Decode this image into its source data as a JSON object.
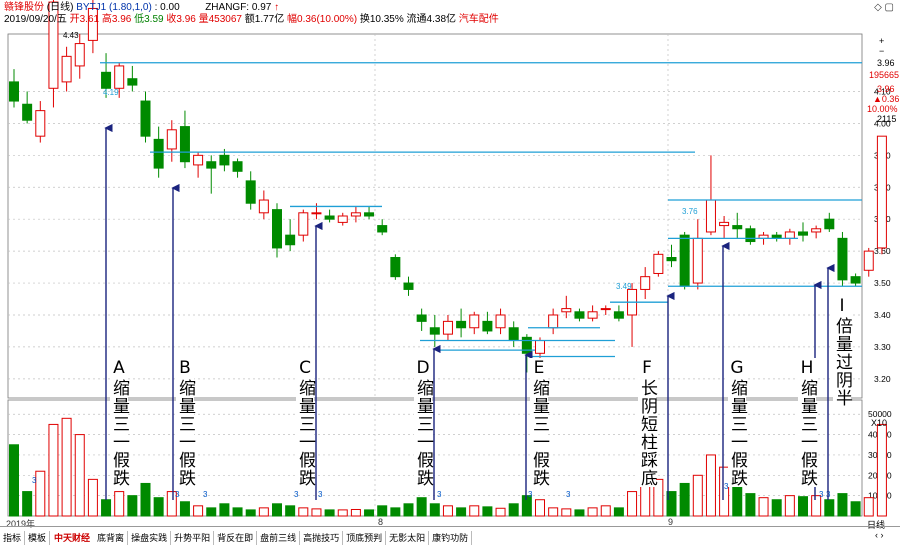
{
  "header": {
    "stock_name": "赣锋股份",
    "period": "(日线)",
    "indicator_label": "BYTJ1 (1.80,1,0)",
    "indicator_value": ": 0.00",
    "zhangf_label": "ZHANGF: 0.97",
    "date": "2019/09/20/五",
    "open_label": "开",
    "open": "3.61",
    "high_label": "高",
    "high": "3.96",
    "low_label": "低",
    "low": "3.59",
    "close_label": "收",
    "close": "3.96",
    "volume_label": "量",
    "volume": "453067",
    "amount_label": "额",
    "amount": "1.77亿",
    "change_label": "幅",
    "change": "0.36(10.00%)",
    "turnover": "换10.35%",
    "float_cap": "流通4.38亿",
    "sector": "汽车配件"
  },
  "window_controls": [
    "◇",
    "▢"
  ],
  "sidebar": {
    "zoom_in": "+",
    "zoom_out": "−",
    "price": "3.96",
    "volume": "195665",
    "price2": "3.96",
    "change": "▲0.36",
    "percent": "10.00%",
    "amount": "2115",
    "period": "日线",
    "nav": "‹ ›",
    "extra": "X10"
  },
  "price_axis": [
    "4.10",
    "4.00",
    "3.90",
    "3.80",
    "3.70",
    "3.60",
    "3.50",
    "3.40",
    "3.30",
    "3.20"
  ],
  "volume_axis": [
    "50000",
    "40000",
    "30000",
    "20000",
    "10000"
  ],
  "footer": {
    "year": "2019年",
    "month_marks": [
      "8",
      "9"
    ]
  },
  "tabs": [
    "指标",
    "模板",
    "底背离",
    "操盘实践",
    "升势平阳",
    "背反在即",
    "盘前三线",
    "高抛技巧",
    "顶底预判",
    "无影太阳",
    "康钓功防"
  ],
  "logo_text": "中天财经",
  "annotations": [
    {
      "letter": "A",
      "text": "缩量三一假跌"
    },
    {
      "letter": "B",
      "text": "缩量三一假跌"
    },
    {
      "letter": "C",
      "text": "缩量三一假跌"
    },
    {
      "letter": "D",
      "text": "缩量三一假跌"
    },
    {
      "letter": "E",
      "text": "缩量三一假跌"
    },
    {
      "letter": "F",
      "text": "长阴短柱踩底"
    },
    {
      "letter": "G",
      "text": "缩量三一假跌"
    },
    {
      "letter": "H",
      "text": "缩量三一假跌"
    },
    {
      "letter": "I",
      "text": "倍量过阴半"
    }
  ],
  "price_labels": [
    "4.43",
    "4.19",
    "3.76",
    "3.49"
  ],
  "volume_markers": [
    "3",
    "3",
    "3",
    "3",
    "3",
    "3",
    "3",
    "3",
    "3",
    "3",
    "3"
  ],
  "colors": {
    "up": "#e00000",
    "down": "#008a00",
    "guide": "#1f9fd6",
    "arrow": "#1a237e",
    "grid": "#c0c0c0"
  },
  "chart_data": {
    "type": "bar",
    "candles_ohlc": [
      [
        4.13,
        4.17,
        4.05,
        4.07
      ],
      [
        4.06,
        4.1,
        4.0,
        4.01
      ],
      [
        3.96,
        4.07,
        3.94,
        4.04
      ],
      [
        4.11,
        4.43,
        4.05,
        4.38
      ],
      [
        4.13,
        4.24,
        4.1,
        4.21
      ],
      [
        4.18,
        4.28,
        4.14,
        4.25
      ],
      [
        4.26,
        4.39,
        4.22,
        4.36
      ],
      [
        4.16,
        4.22,
        4.08,
        4.11
      ],
      [
        4.11,
        4.19,
        4.08,
        4.18
      ],
      [
        4.14,
        4.18,
        4.1,
        4.12
      ],
      [
        4.07,
        4.1,
        3.94,
        3.96
      ],
      [
        3.95,
        3.99,
        3.83,
        3.86
      ],
      [
        3.92,
        4.01,
        3.88,
        3.98
      ],
      [
        3.99,
        4.04,
        3.86,
        3.88
      ],
      [
        3.87,
        3.91,
        3.83,
        3.9
      ],
      [
        3.88,
        3.9,
        3.78,
        3.86
      ],
      [
        3.9,
        3.92,
        3.85,
        3.87
      ],
      [
        3.88,
        3.89,
        3.83,
        3.85
      ],
      [
        3.82,
        3.85,
        3.73,
        3.75
      ],
      [
        3.72,
        3.79,
        3.7,
        3.76
      ],
      [
        3.73,
        3.75,
        3.58,
        3.61
      ],
      [
        3.65,
        3.7,
        3.6,
        3.62
      ],
      [
        3.65,
        3.73,
        3.63,
        3.72
      ],
      [
        3.72,
        3.75,
        3.7,
        3.72
      ],
      [
        3.71,
        3.73,
        3.69,
        3.7
      ],
      [
        3.69,
        3.72,
        3.68,
        3.71
      ],
      [
        3.71,
        3.74,
        3.69,
        3.72
      ],
      [
        3.72,
        3.74,
        3.7,
        3.71
      ],
      [
        3.68,
        3.7,
        3.65,
        3.66
      ],
      [
        3.58,
        3.59,
        3.51,
        3.52
      ],
      [
        3.5,
        3.52,
        3.46,
        3.48
      ],
      [
        3.4,
        3.42,
        3.35,
        3.38
      ],
      [
        3.36,
        3.4,
        3.3,
        3.34
      ],
      [
        3.34,
        3.4,
        3.32,
        3.38
      ],
      [
        3.38,
        3.42,
        3.33,
        3.36
      ],
      [
        3.36,
        3.41,
        3.34,
        3.4
      ],
      [
        3.38,
        3.41,
        3.34,
        3.35
      ],
      [
        3.36,
        3.42,
        3.34,
        3.4
      ],
      [
        3.36,
        3.38,
        3.3,
        3.32
      ],
      [
        3.33,
        3.34,
        3.22,
        3.28
      ],
      [
        3.28,
        3.33,
        3.26,
        3.32
      ],
      [
        3.36,
        3.42,
        3.34,
        3.4
      ],
      [
        3.41,
        3.46,
        3.39,
        3.42
      ],
      [
        3.41,
        3.42,
        3.38,
        3.39
      ],
      [
        3.39,
        3.43,
        3.38,
        3.41
      ],
      [
        3.42,
        3.43,
        3.4,
        3.42
      ],
      [
        3.41,
        3.43,
        3.38,
        3.39
      ],
      [
        3.4,
        3.5,
        3.3,
        3.48
      ],
      [
        3.48,
        3.55,
        3.45,
        3.52
      ],
      [
        3.53,
        3.6,
        3.52,
        3.59
      ],
      [
        3.58,
        3.62,
        3.55,
        3.57
      ],
      [
        3.65,
        3.66,
        3.48,
        3.49
      ],
      [
        3.5,
        3.7,
        3.48,
        3.64
      ],
      [
        3.66,
        3.9,
        3.65,
        3.76
      ],
      [
        3.68,
        3.71,
        3.64,
        3.69
      ],
      [
        3.68,
        3.72,
        3.64,
        3.67
      ],
      [
        3.67,
        3.68,
        3.62,
        3.63
      ],
      [
        3.64,
        3.66,
        3.62,
        3.65
      ],
      [
        3.65,
        3.66,
        3.63,
        3.64
      ],
      [
        3.64,
        3.67,
        3.62,
        3.66
      ],
      [
        3.66,
        3.69,
        3.63,
        3.65
      ],
      [
        3.66,
        3.68,
        3.64,
        3.67
      ],
      [
        3.7,
        3.72,
        3.66,
        3.67
      ],
      [
        3.64,
        3.66,
        3.49,
        3.51
      ],
      [
        3.52,
        3.53,
        3.49,
        3.5
      ],
      [
        3.54,
        3.61,
        3.52,
        3.6
      ],
      [
        3.61,
        3.96,
        3.59,
        3.96
      ]
    ],
    "volumes": [
      35000,
      12000,
      22000,
      45000,
      48000,
      40000,
      18000,
      8000,
      12000,
      10000,
      16000,
      9000,
      12000,
      7000,
      5000,
      4000,
      6000,
      4000,
      3000,
      4000,
      6000,
      5000,
      4000,
      3500,
      3000,
      3000,
      3200,
      3000,
      5000,
      4000,
      6000,
      9000,
      6000,
      5000,
      4000,
      5000,
      4500,
      3800,
      6000,
      10000,
      8000,
      4000,
      3500,
      3000,
      4000,
      5000,
      4000,
      12000,
      15000,
      18000,
      12000,
      16000,
      20000,
      30000,
      24000,
      18000,
      11000,
      9000,
      8000,
      10000,
      9500,
      10000,
      8000,
      11000,
      7000,
      9000,
      45000
    ],
    "ylim_price": [
      3.14,
      4.28
    ],
    "ylim_volume": [
      0,
      57000
    ],
    "grid": true
  }
}
